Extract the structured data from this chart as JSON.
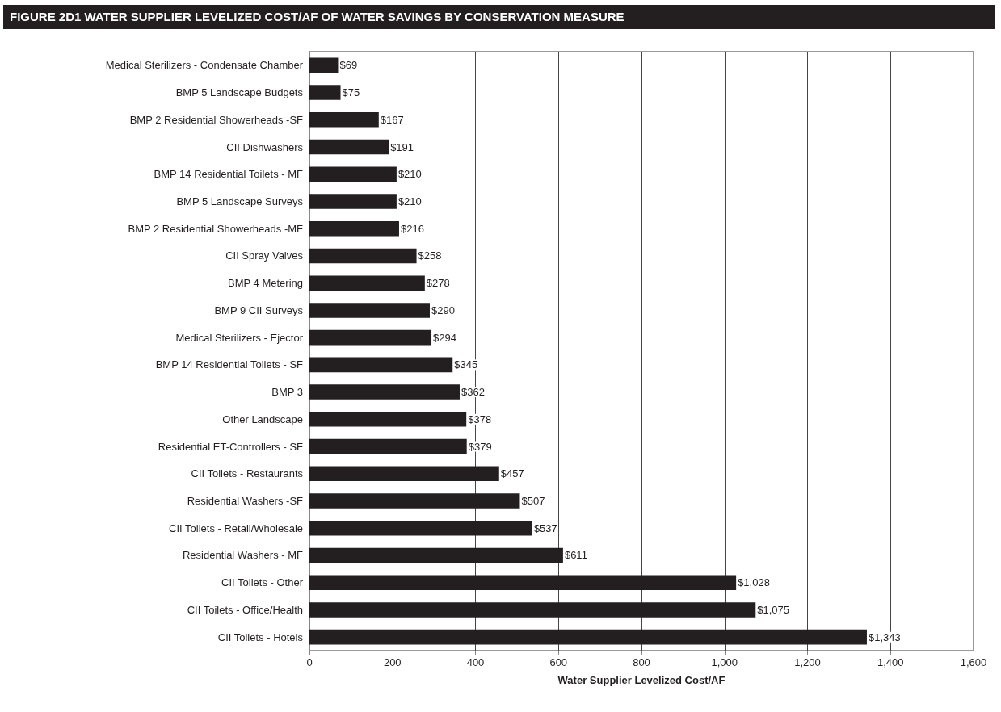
{
  "chart_data": {
    "type": "bar",
    "orientation": "horizontal",
    "title": "FIGURE 2D1 WATER SUPPLIER LEVELIZED COST/AF OF WATER SAVINGS BY CONSERVATION MEASURE",
    "xlabel": "Water Supplier Levelized Cost/AF",
    "categories": [
      "Medical Sterilizers - Condensate Chamber",
      "BMP 5 Landscape Budgets",
      "BMP 2 Residential Showerheads -SF",
      "CII Dishwashers",
      "BMP 14 Residential Toilets - MF",
      "BMP 5 Landscape Surveys",
      "BMP 2 Residential Showerheads -MF",
      "CII Spray Valves",
      "BMP 4 Metering",
      "BMP 9 CII Surveys",
      "Medical Sterilizers - Ejector",
      "BMP 14 Residential Toilets - SF",
      "BMP 3",
      "Other Landscape",
      "Residential ET-Controllers - SF",
      "CII Toilets - Restaurants",
      "Residential Washers -SF",
      "CII Toilets - Retail/Wholesale",
      "Residential Washers - MF",
      "CII Toilets - Other",
      "CII Toilets - Office/Health",
      "CII Toilets - Hotels"
    ],
    "values": [
      69,
      75,
      167,
      191,
      210,
      210,
      216,
      258,
      278,
      290,
      294,
      345,
      362,
      378,
      379,
      457,
      507,
      537,
      611,
      1028,
      1075,
      1343
    ],
    "value_labels": [
      "$69",
      "$75",
      "$167",
      "$191",
      "$210",
      "$210",
      "$216",
      "$258",
      "$278",
      "$290",
      "$294",
      "$345",
      "$362",
      "$378",
      "$379",
      "$457",
      "$507",
      "$537",
      "$611",
      "$1,028",
      "$1,075",
      "$1,343"
    ],
    "color": "#231f20",
    "xlim": [
      0,
      1600
    ],
    "xticks": [
      0,
      200,
      400,
      600,
      800,
      {
        "value": 1000,
        "label": "1,000"
      },
      {
        "value": 1200,
        "label": "1,200"
      },
      {
        "value": 1400,
        "label": "1,400"
      },
      {
        "value": 1600,
        "label": "1,600"
      }
    ],
    "grid": "x"
  }
}
